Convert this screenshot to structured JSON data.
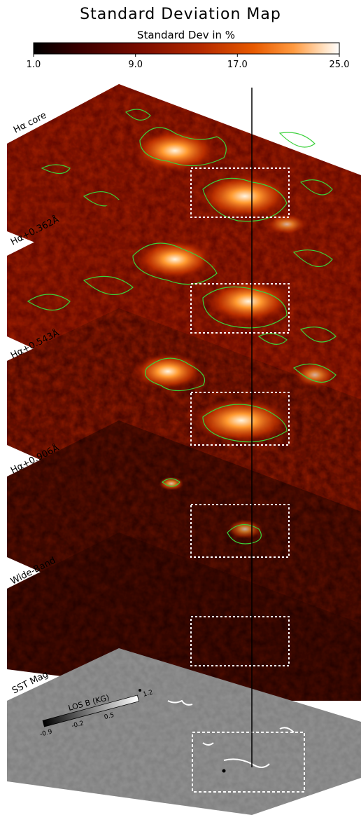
{
  "figure": {
    "title": "Standard Deviation Map",
    "colorbar": {
      "label": "Standard Dev in %",
      "ticks": [
        "1.0",
        "9.0",
        "17.0",
        "25.0"
      ],
      "min": 1.0,
      "max": 25.0,
      "colormap": [
        "#000000",
        "#3a0000",
        "#7a0c00",
        "#b52a00",
        "#e85a00",
        "#ff9a40",
        "#ffe0c0",
        "#ffffff"
      ]
    },
    "contour_color": "#3bd13b",
    "panels": [
      {
        "label": "Hα core",
        "intensity": 0.85,
        "contours": "dense"
      },
      {
        "label": "Hα+0.362Å",
        "intensity": 0.8,
        "contours": "dense"
      },
      {
        "label": "Hα+0.543Å",
        "intensity": 0.75,
        "contours": "medium"
      },
      {
        "label": "Hα+0.906Å",
        "intensity": 0.3,
        "contours": "sparse"
      },
      {
        "label": "Wide-Band",
        "intensity": 0.15,
        "contours": "none"
      },
      {
        "label": "SST Mag",
        "intensity": 0.0,
        "contours": "none"
      }
    ],
    "mag_colorbar": {
      "label": "LOS B (KG)",
      "ticks": [
        "-0.9",
        "-0.2",
        "0.5",
        "1.2"
      ],
      "min": -0.9,
      "max": 1.2
    }
  }
}
